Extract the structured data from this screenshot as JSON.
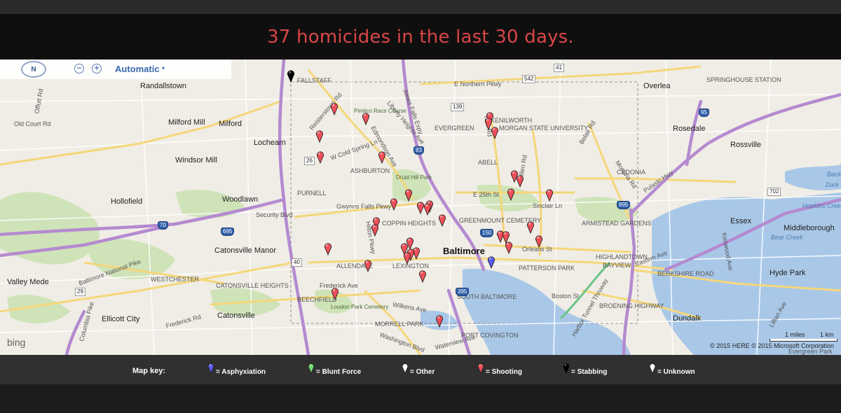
{
  "headline": "37 homicides in the last 30 days.",
  "map": {
    "compass_label": "N",
    "zoom_out_label": "−",
    "zoom_in_label": "+",
    "map_type": "Automatic",
    "map_type_caret": "▾",
    "provider": "bing",
    "copyright": "© 2015 HERE   © 2015 Microsoft Corporation",
    "scale_miles": "1 miles",
    "scale_km": "1 km",
    "places": [
      "Randallstown",
      "Milford Mill",
      "Milford",
      "Lochearn",
      "Windsor Mill",
      "Woodlawn",
      "Hollofield",
      "Catonsville Manor",
      "Catonsville",
      "Valley Mede",
      "Ellicott City",
      "Baltimore",
      "Overlea",
      "Rosedale",
      "Rossville",
      "Essex",
      "Middleborough",
      "Hyde Park",
      "Dundalk",
      "Evergreen Park"
    ],
    "neighborhoods": [
      "FALLSTAFF",
      "EVERGREEN",
      "KENILWORTH",
      "MORGAN STATE UNIVERSITY",
      "ASHBURTON",
      "ABELL",
      "CEDONIA",
      "PURNELL",
      "COPPIN HEIGHTS",
      "GREENMOUNT CEMETERY",
      "ARMISTEAD GARDENS",
      "ALLENDALE",
      "LEXINGTON",
      "PATTERSON PARK",
      "HIGHLANDTOWN",
      "BAYVIEW",
      "WESTCHESTER",
      "CATONSVILLE HEIGHTS",
      "BEECHFIELD",
      "SOUTH BALTIMORE",
      "BROENING HIGHWAY",
      "MORRELL PARK",
      "PORT COVINGTON",
      "BERKSHIRE ROAD",
      "SPRINGHOUSE STATION"
    ],
    "roads": [
      "Reisterstown Rd",
      "Jones Falls Expy",
      "E Northern Pkwy",
      "York Rd",
      "Hillen Rd",
      "Belair Rd",
      "Moravia Rd",
      "Pulaski Hwy",
      "E 25th St",
      "Sinclair Ln",
      "Gwynns Falls Pkwy",
      "Hilton Pkwy",
      "Security Blvd",
      "Frederick Rd",
      "Frederick Ave",
      "Baltimore National Pike",
      "Columbia Pike",
      "Orleans St",
      "Eastern Ave",
      "Boston St",
      "Harbor Tunnel Thruway",
      "Old Court Rd",
      "Offutt Rd",
      "W Cold Spring Ln",
      "Liberty Heights Ave",
      "Edmondson Ave",
      "Wilkens Ave",
      "Washington Blvd",
      "Waterview Ave",
      "Kenwood Ave",
      "Lillian Ave"
    ],
    "shields": [
      "41",
      "542",
      "139",
      "83",
      "26",
      "40",
      "70",
      "695",
      "895",
      "95",
      "702",
      "29",
      "395",
      "150"
    ],
    "parks": [
      "Druid Hill Park",
      "Pimlico Race Course",
      "Loudon Park Cemetery"
    ],
    "waters": [
      "Back River",
      "Bear Creek",
      "Hopkins Creek",
      "Dark Head Creek"
    ]
  },
  "incidents": {
    "counts": {
      "Asphyxiation": 1,
      "Blunt Force": 0,
      "Other": 0,
      "Shooting": 35,
      "Stabbing": 1,
      "Unknown": 0
    }
  },
  "key": {
    "title": "Map key:",
    "items": [
      {
        "label": "= Asphyxiation",
        "color": "#5a5af0"
      },
      {
        "label": "= Blunt Force",
        "color": "#6fdc6f"
      },
      {
        "label": "= Other",
        "color": "#ffffff"
      },
      {
        "label": "= Shooting",
        "color": "#f0505a"
      },
      {
        "label": "= Stabbing",
        "color": "#000000"
      },
      {
        "label": "= Unknown",
        "color": "#ffffff"
      }
    ]
  },
  "colors": {
    "headline": "#d94646",
    "shooting": "#f0505a",
    "asphyxiation": "#5a5af0",
    "stabbing": "#000000",
    "highway": "#b48ad0",
    "major_road": "#f5d77a",
    "water": "#a9c8e8",
    "park": "#cfe3b8"
  }
}
